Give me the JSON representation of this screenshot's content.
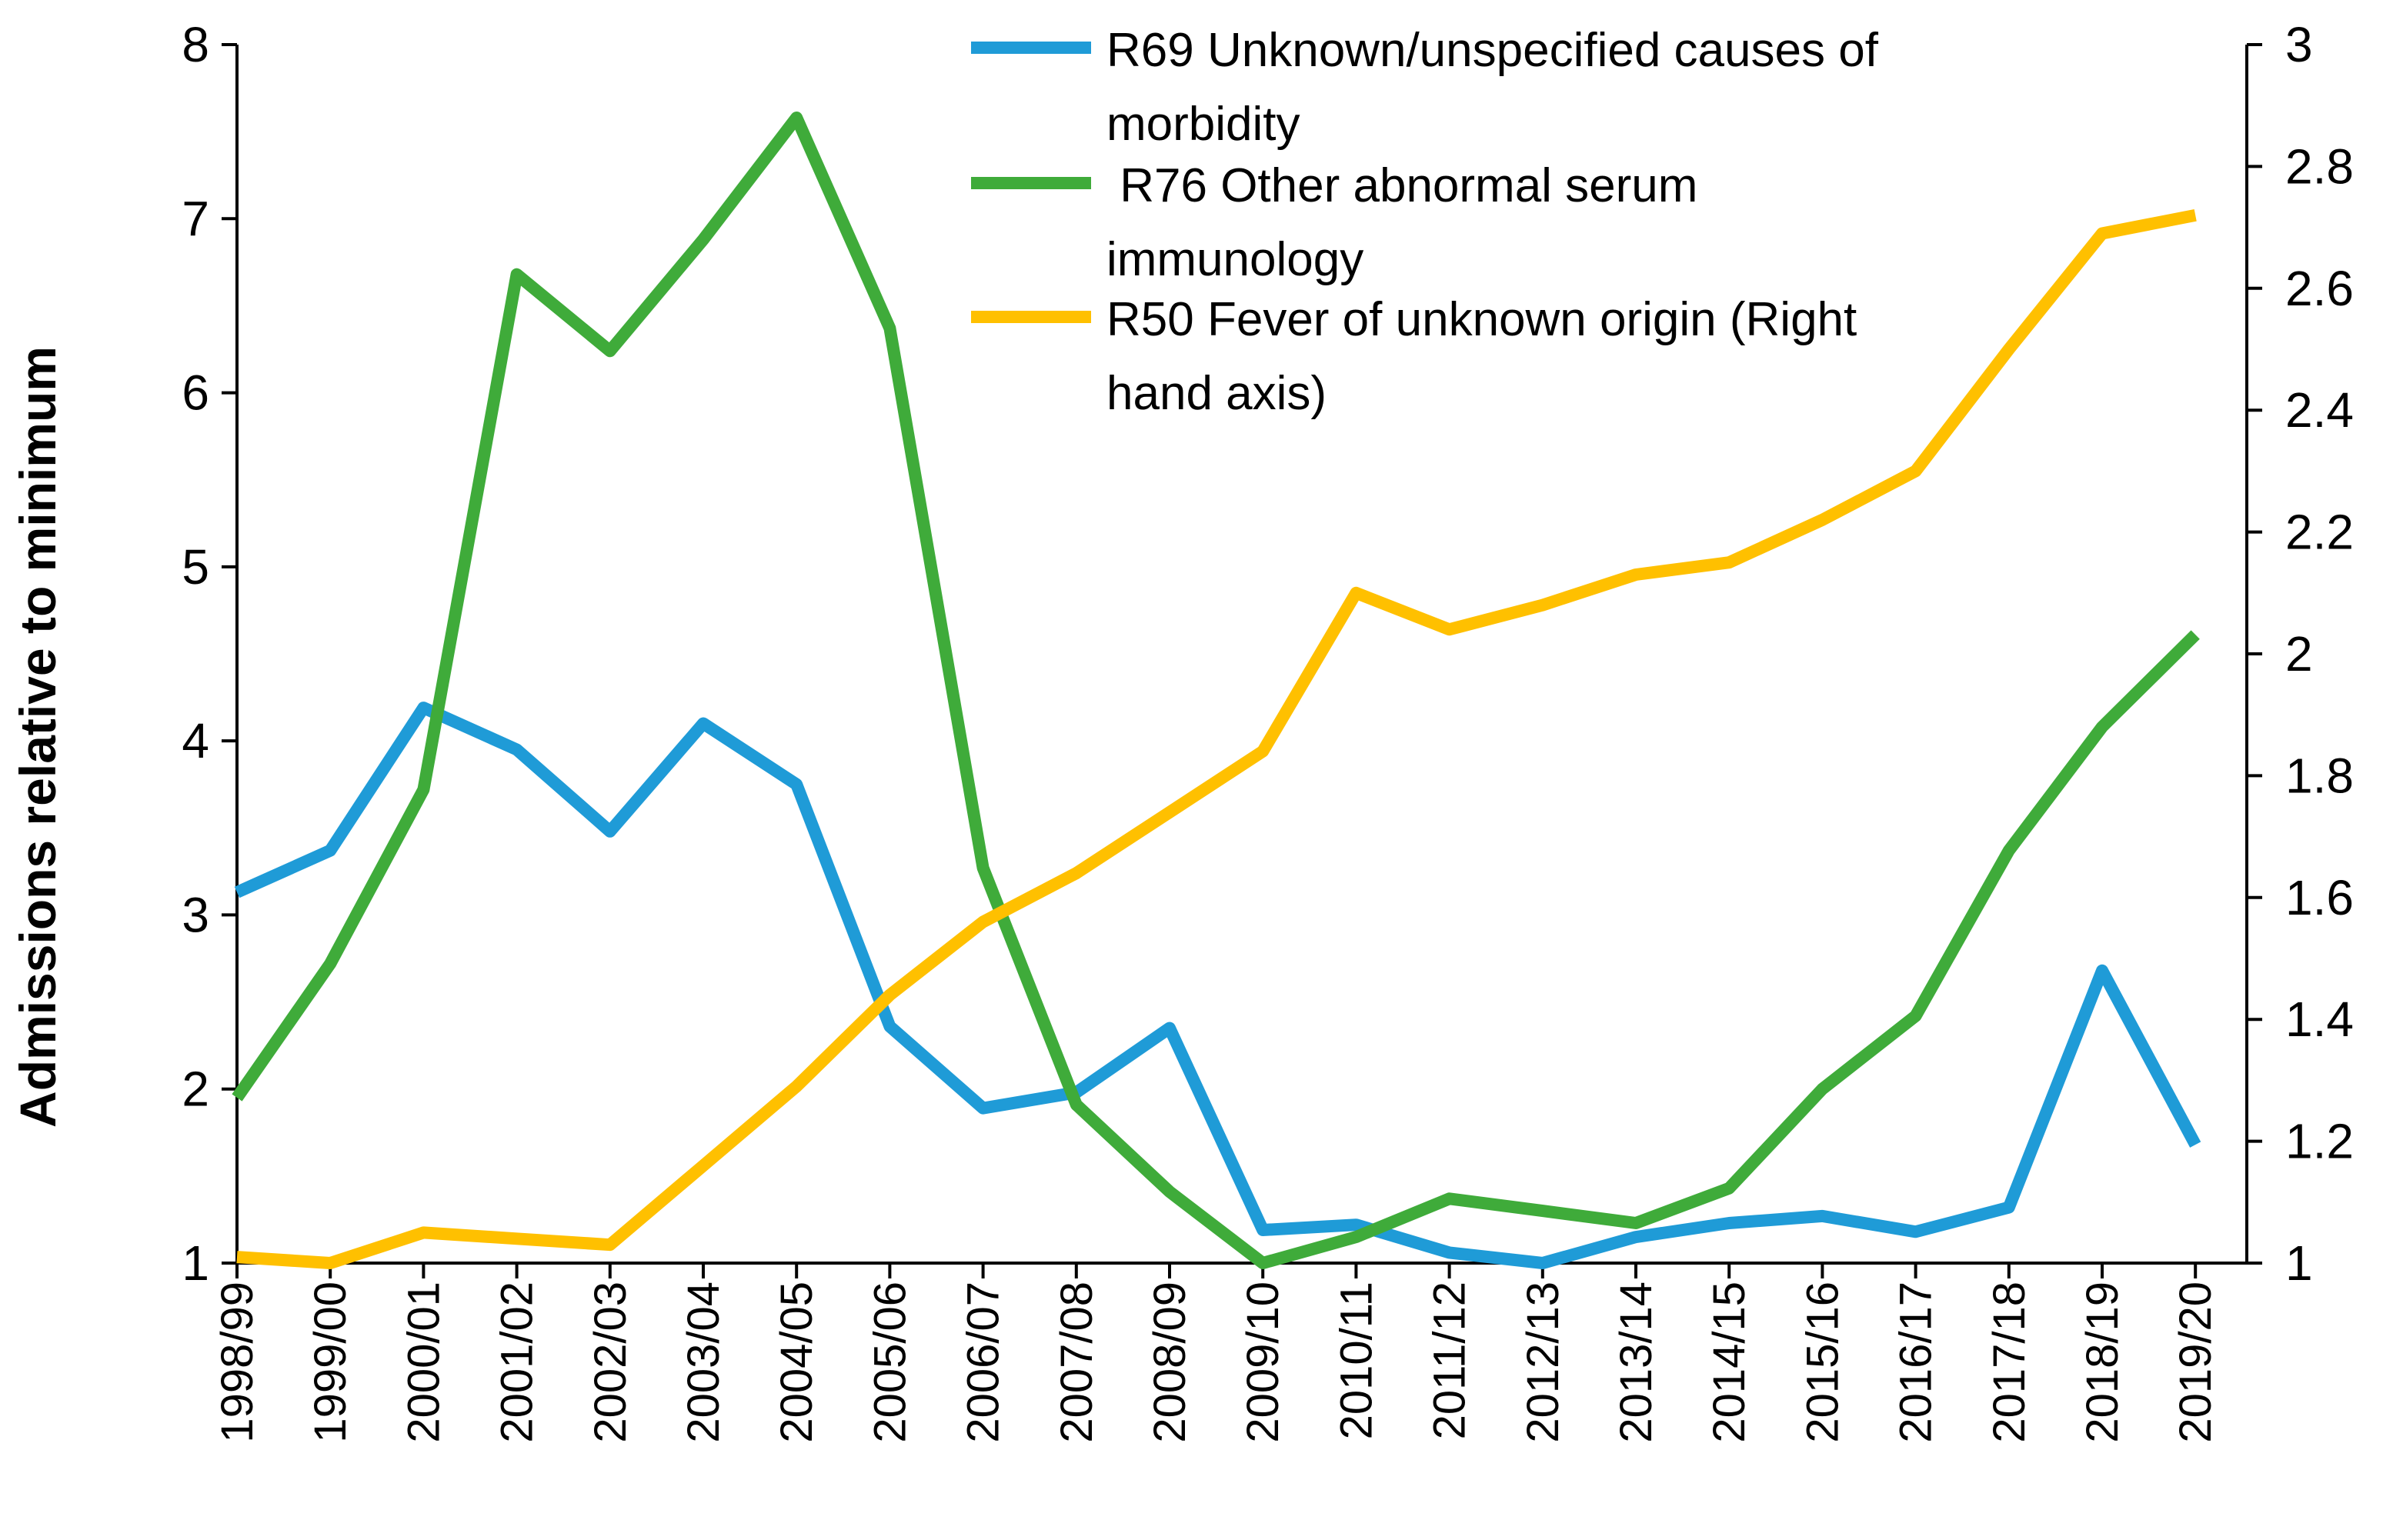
{
  "chart_data": {
    "type": "line",
    "title": "",
    "xlabel": "",
    "ylabel": "Admissions relative to minimum",
    "y2label": "",
    "ylim": [
      1,
      8
    ],
    "y2lim": [
      1,
      3
    ],
    "y_ticks": [
      "1",
      "2",
      "3",
      "4",
      "5",
      "6",
      "7",
      "8"
    ],
    "y2_ticks": [
      "1",
      "1.2",
      "1.4",
      "1.6",
      "1.8",
      "2",
      "2.2",
      "2.4",
      "2.6",
      "2.8",
      "3"
    ],
    "grid": false,
    "legend_position": "top-center",
    "categories": [
      "1998/99",
      "1999/00",
      "2000/01",
      "2001/02",
      "2002/03",
      "2003/04",
      "2004/05",
      "2005/06",
      "2006/07",
      "2007/08",
      "2008/09",
      "2009/10",
      "2010/11",
      "2011/12",
      "2012/13",
      "2013/14",
      "2014/15",
      "2015/16",
      "2016/17",
      "2017/18",
      "2018/19",
      "2019/20"
    ],
    "series": [
      {
        "name": "R69 Unknown/unspecified causes of morbidity",
        "legend_lines": [
          "R69 Unknown/unspecified causes of",
          "morbidity"
        ],
        "axis": "left",
        "color": "#1f9bd7",
        "values": [
          3.13,
          3.37,
          4.19,
          3.95,
          3.48,
          4.1,
          3.75,
          2.36,
          1.89,
          1.98,
          2.35,
          1.19,
          1.22,
          1.06,
          1.0,
          1.15,
          1.23,
          1.27,
          1.18,
          1.32,
          2.68,
          1.68
        ]
      },
      {
        "name": " R76 Other abnormal serum immunology",
        "legend_lines": [
          " R76 Other abnormal serum",
          "immunology"
        ],
        "axis": "left",
        "color": "#3fab3a",
        "values": [
          1.95,
          2.72,
          3.72,
          6.68,
          6.24,
          6.88,
          7.58,
          6.37,
          3.27,
          1.91,
          1.41,
          1.0,
          1.15,
          1.37,
          1.3,
          1.23,
          1.43,
          2.0,
          2.42,
          3.37,
          4.08,
          4.61
        ]
      },
      {
        "name": "R50 Fever of unknown origin (Right hand axis)",
        "legend_lines": [
          "R50 Fever of unknown origin (Right",
          "hand axis)"
        ],
        "axis": "right",
        "color": "#ffc000",
        "values": [
          1.01,
          1.0,
          1.05,
          1.04,
          1.03,
          1.16,
          1.29,
          1.44,
          1.56,
          1.64,
          1.74,
          1.84,
          2.1,
          2.04,
          2.08,
          2.13,
          2.15,
          2.22,
          2.3,
          2.5,
          2.69,
          2.72
        ]
      }
    ]
  }
}
